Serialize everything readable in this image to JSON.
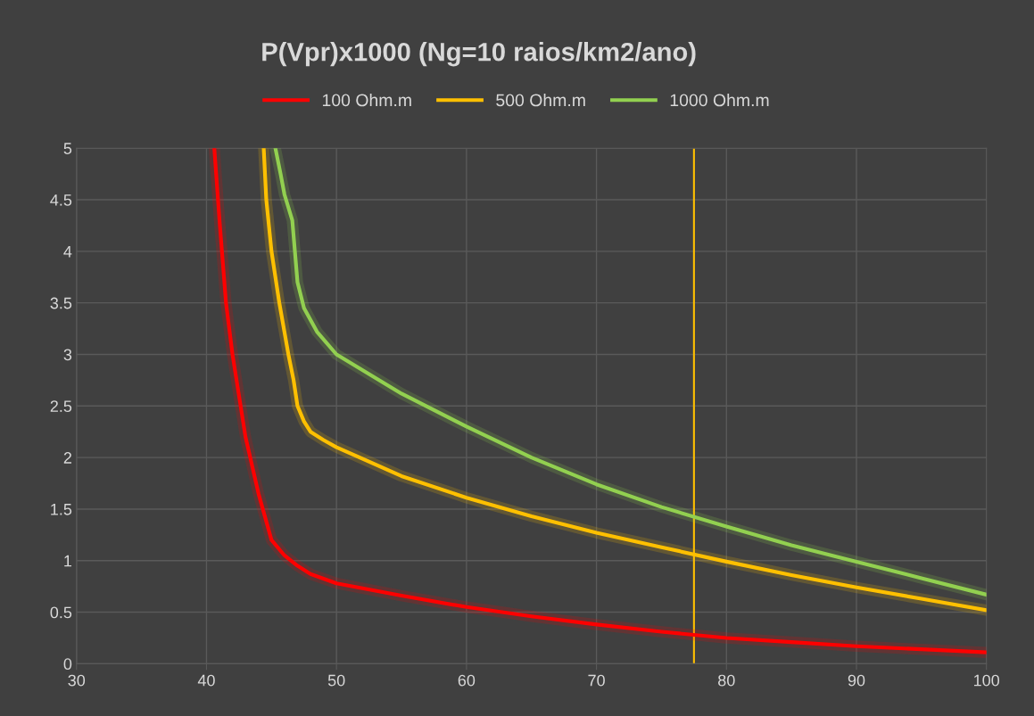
{
  "chart_data": {
    "type": "line",
    "title": "P(Vpr)x1000 (Ng=10 raios/km2/ano)",
    "xlim": [
      30,
      100
    ],
    "xticks": [
      30,
      40,
      50,
      60,
      70,
      80,
      90,
      100
    ],
    "ylim": [
      0,
      5
    ],
    "yticks": [
      0,
      0.5,
      1,
      1.5,
      2,
      2.5,
      3,
      3.5,
      4,
      4.5,
      5
    ],
    "grid": true,
    "legend": "top",
    "marker": "none",
    "line_style": "solid",
    "series": [
      {
        "name": "100 Ohm.m",
        "color": "#ff0000",
        "x": [
          40.6,
          41.0,
          41.5,
          42,
          42.5,
          43,
          44,
          45,
          46,
          47,
          48,
          50,
          55,
          60,
          65,
          70,
          75,
          80,
          85,
          90,
          95,
          100
        ],
        "values": [
          5,
          4.3,
          3.5,
          3.0,
          2.6,
          2.2,
          1.65,
          1.2,
          1.05,
          0.95,
          0.87,
          0.78,
          0.66,
          0.55,
          0.46,
          0.38,
          0.31,
          0.25,
          0.21,
          0.17,
          0.14,
          0.11
        ]
      },
      {
        "name": "500 Ohm.m",
        "color": "#ffc000",
        "x": [
          44.4,
          44.6,
          45,
          45.6,
          46.3,
          46.7,
          47,
          47.5,
          48,
          49,
          50,
          55,
          60,
          65,
          70,
          75,
          80,
          85,
          90,
          95,
          100
        ],
        "values": [
          5,
          4.5,
          4.0,
          3.5,
          3.0,
          2.75,
          2.5,
          2.35,
          2.25,
          2.17,
          2.1,
          1.82,
          1.61,
          1.43,
          1.27,
          1.13,
          0.99,
          0.86,
          0.74,
          0.63,
          0.52
        ]
      },
      {
        "name": "1000 Ohm.m",
        "color": "#92d050",
        "x": [
          45.3,
          45.7,
          46,
          46.6,
          46.8,
          47,
          47.5,
          48.5,
          50,
          55,
          60,
          65,
          70,
          75,
          80,
          85,
          90,
          95,
          100
        ],
        "values": [
          5,
          4.75,
          4.55,
          4.3,
          4.0,
          3.7,
          3.45,
          3.22,
          3.0,
          2.62,
          2.3,
          2.0,
          1.74,
          1.52,
          1.33,
          1.15,
          0.99,
          0.83,
          0.67
        ]
      }
    ],
    "ref_lines": [
      {
        "axis": "x",
        "value": 77.5,
        "color": "#ffc000",
        "line_style": "solid"
      }
    ]
  }
}
